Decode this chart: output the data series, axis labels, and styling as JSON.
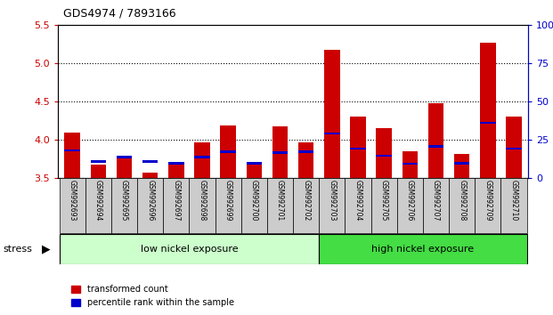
{
  "title": "GDS4974 / 7893166",
  "samples": [
    "GSM992693",
    "GSM992694",
    "GSM992695",
    "GSM992696",
    "GSM992697",
    "GSM992698",
    "GSM992699",
    "GSM992700",
    "GSM992701",
    "GSM992702",
    "GSM992703",
    "GSM992704",
    "GSM992705",
    "GSM992706",
    "GSM992707",
    "GSM992708",
    "GSM992709",
    "GSM992710"
  ],
  "red_values": [
    4.1,
    3.68,
    3.78,
    3.57,
    3.67,
    3.97,
    4.19,
    3.7,
    4.18,
    3.97,
    5.18,
    4.3,
    4.15,
    3.85,
    4.48,
    3.82,
    5.27,
    4.3
  ],
  "blue_values": [
    3.85,
    3.7,
    3.76,
    3.7,
    3.68,
    3.76,
    3.83,
    3.68,
    3.82,
    3.83,
    4.07,
    3.87,
    3.78,
    3.67,
    3.9,
    3.68,
    4.21,
    3.87
  ],
  "baseline": 3.5,
  "ymin": 3.5,
  "ymax": 5.5,
  "yticks_left": [
    3.5,
    4.0,
    4.5,
    5.0,
    5.5
  ],
  "yticks_right_positions": [
    3.5,
    4.0,
    4.5,
    5.0,
    5.5
  ],
  "yticks_right_labels": [
    "0",
    "25",
    "50",
    "75",
    "100%"
  ],
  "bar_color": "#cc0000",
  "blue_color": "#0000cc",
  "low_boundary": 10,
  "low_nickel_label": "low nickel exposure",
  "high_nickel_label": "high nickel exposure",
  "stress_label": "stress",
  "legend_red": "transformed count",
  "legend_blue": "percentile rank within the sample",
  "low_nickel_color": "#ccffcc",
  "high_nickel_color": "#44dd44",
  "tick_bg_color": "#cccccc",
  "left_axis_color": "#cc0000",
  "right_axis_color": "#0000cc"
}
